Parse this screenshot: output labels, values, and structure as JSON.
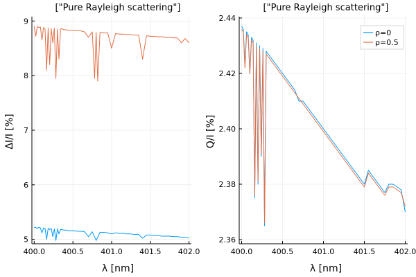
{
  "chart_data": [
    {
      "type": "line",
      "title": "[\"Pure Rayleigh scattering\"]",
      "xlabel": "λ [nm]",
      "ylabel": "ΔI/I [%]",
      "xlim": [
        399.97,
        402.03
      ],
      "ylim": [
        4.92,
        9.08
      ],
      "xticks": [
        400.0,
        400.5,
        401.0,
        401.5,
        402.0
      ],
      "xtick_labels": [
        "400.0",
        "400.5",
        "401.0",
        "401.5",
        "402.0"
      ],
      "yticks": [
        5,
        6,
        7,
        8,
        9
      ],
      "ytick_labels": [
        "5",
        "6",
        "7",
        "8",
        "9"
      ],
      "grid": true,
      "legend": null,
      "series": [
        {
          "color": "#009AFA",
          "x": [
            400.0,
            400.02,
            400.04,
            400.06,
            400.08,
            400.1,
            400.12,
            400.14,
            400.16,
            400.18,
            400.2,
            400.22,
            400.24,
            400.26,
            400.28,
            400.3,
            400.32,
            400.34,
            400.36,
            400.38,
            400.4,
            400.45,
            400.5,
            400.55,
            400.6,
            400.65,
            400.7,
            400.75,
            400.8,
            400.85,
            400.9,
            400.95,
            401.0,
            401.05,
            401.1,
            401.15,
            401.2,
            401.25,
            401.3,
            401.35,
            401.4,
            401.45,
            401.5,
            401.55,
            401.6,
            401.65,
            401.7,
            401.75,
            401.8,
            401.85,
            401.9,
            401.95,
            402.0
          ],
          "y": [
            5.22,
            5.22,
            5.2,
            5.22,
            5.21,
            5.12,
            5.21,
            5.2,
            5.0,
            5.2,
            5.18,
            5.2,
            5.05,
            5.19,
            4.98,
            5.19,
            5.1,
            5.18,
            5.18,
            5.17,
            5.17,
            5.16,
            5.16,
            5.15,
            5.15,
            5.14,
            5.05,
            5.14,
            4.98,
            5.13,
            5.13,
            5.12,
            5.1,
            5.12,
            5.11,
            5.11,
            5.1,
            5.1,
            5.09,
            5.09,
            5.02,
            5.08,
            5.08,
            5.07,
            5.07,
            5.06,
            5.06,
            5.06,
            5.05,
            5.05,
            5.04,
            5.04,
            5.03
          ]
        },
        {
          "color": "#E26F46",
          "x": [
            400.0,
            400.02,
            400.04,
            400.06,
            400.08,
            400.1,
            400.12,
            400.14,
            400.16,
            400.18,
            400.2,
            400.22,
            400.24,
            400.26,
            400.28,
            400.3,
            400.32,
            400.34,
            400.36,
            400.38,
            400.4,
            400.45,
            400.5,
            400.55,
            400.6,
            400.65,
            400.7,
            400.75,
            400.78,
            400.8,
            400.82,
            400.85,
            400.9,
            400.95,
            401.0,
            401.05,
            401.1,
            401.15,
            401.2,
            401.25,
            401.3,
            401.35,
            401.4,
            401.45,
            401.5,
            401.55,
            401.6,
            401.65,
            401.7,
            401.75,
            401.8,
            401.85,
            401.9,
            401.95,
            402.0
          ],
          "y": [
            8.9,
            8.72,
            8.9,
            8.88,
            8.89,
            8.65,
            8.88,
            8.85,
            8.1,
            8.87,
            8.2,
            8.86,
            8.6,
            8.87,
            7.95,
            8.85,
            8.3,
            8.85,
            8.86,
            8.84,
            8.84,
            8.83,
            8.83,
            8.82,
            8.82,
            8.8,
            8.7,
            8.8,
            7.95,
            8.79,
            7.9,
            8.79,
            8.78,
            8.78,
            8.5,
            8.77,
            8.76,
            8.76,
            8.75,
            8.75,
            8.74,
            8.74,
            8.3,
            8.73,
            8.72,
            8.72,
            8.71,
            8.71,
            8.7,
            8.7,
            8.69,
            8.69,
            8.6,
            8.68,
            8.6
          ]
        }
      ]
    },
    {
      "type": "line",
      "title": "[\"Pure Rayleigh scattering\"]",
      "xlabel": "λ [nm]",
      "ylabel": "Q/I [%]",
      "xlim": [
        399.97,
        402.03
      ],
      "ylim": [
        2.3585,
        2.4405
      ],
      "xticks": [
        400.0,
        400.5,
        401.0,
        401.5,
        402.0
      ],
      "xtick_labels": [
        "400.0",
        "400.5",
        "401.0",
        "401.5",
        "402.0"
      ],
      "yticks": [
        2.36,
        2.38,
        2.4,
        2.42,
        2.44
      ],
      "ytick_labels": [
        "2.36",
        "2.38",
        "2.40",
        "2.42",
        "2.44"
      ],
      "grid": true,
      "legend": "top-right",
      "series": [
        {
          "name": "ρ=0",
          "color": "#009AFA",
          "x": [
            400.0,
            400.02,
            400.04,
            400.06,
            400.08,
            400.1,
            400.12,
            400.14,
            400.16,
            400.18,
            400.2,
            400.22,
            400.24,
            400.26,
            400.28,
            400.3,
            400.35,
            400.4,
            400.45,
            400.5,
            400.55,
            400.6,
            400.65,
            400.7,
            400.75,
            400.8,
            400.85,
            400.9,
            400.95,
            401.0,
            401.05,
            401.1,
            401.15,
            401.2,
            401.25,
            401.3,
            401.35,
            401.4,
            401.45,
            401.5,
            401.55,
            401.6,
            401.65,
            401.7,
            401.75,
            401.8,
            401.85,
            401.9,
            401.95,
            402.0
          ],
          "y": [
            2.437,
            2.436,
            2.423,
            2.435,
            2.434,
            2.42,
            2.433,
            2.432,
            2.375,
            2.431,
            2.38,
            2.43,
            2.39,
            2.429,
            2.365,
            2.428,
            2.426,
            2.424,
            2.422,
            2.42,
            2.418,
            2.416,
            2.414,
            2.41,
            2.41,
            2.408,
            2.406,
            2.404,
            2.402,
            2.4,
            2.398,
            2.396,
            2.394,
            2.392,
            2.39,
            2.388,
            2.386,
            2.384,
            2.382,
            2.38,
            2.385,
            2.383,
            2.381,
            2.379,
            2.377,
            2.38,
            2.38,
            2.379,
            2.378,
            2.37
          ]
        },
        {
          "name": "ρ=0.5",
          "color": "#E26F46",
          "x": [
            400.0,
            400.02,
            400.04,
            400.06,
            400.08,
            400.1,
            400.12,
            400.14,
            400.16,
            400.18,
            400.2,
            400.22,
            400.24,
            400.26,
            400.28,
            400.3,
            400.35,
            400.4,
            400.45,
            400.5,
            400.55,
            400.6,
            400.65,
            400.7,
            400.75,
            400.8,
            400.85,
            400.9,
            400.95,
            401.0,
            401.05,
            401.1,
            401.15,
            401.2,
            401.25,
            401.3,
            401.35,
            401.4,
            401.45,
            401.5,
            401.55,
            401.6,
            401.65,
            401.7,
            401.75,
            401.8,
            401.85,
            401.9,
            401.95,
            402.0
          ],
          "y": [
            2.436,
            2.435,
            2.422,
            2.434,
            2.433,
            2.42,
            2.432,
            2.431,
            2.376,
            2.43,
            2.381,
            2.429,
            2.391,
            2.428,
            2.366,
            2.427,
            2.425,
            2.423,
            2.421,
            2.419,
            2.417,
            2.415,
            2.413,
            2.411,
            2.409,
            2.407,
            2.405,
            2.403,
            2.401,
            2.399,
            2.397,
            2.395,
            2.393,
            2.391,
            2.389,
            2.387,
            2.385,
            2.383,
            2.381,
            2.379,
            2.384,
            2.382,
            2.38,
            2.378,
            2.376,
            2.379,
            2.379,
            2.378,
            2.377,
            2.372
          ]
        }
      ]
    }
  ]
}
